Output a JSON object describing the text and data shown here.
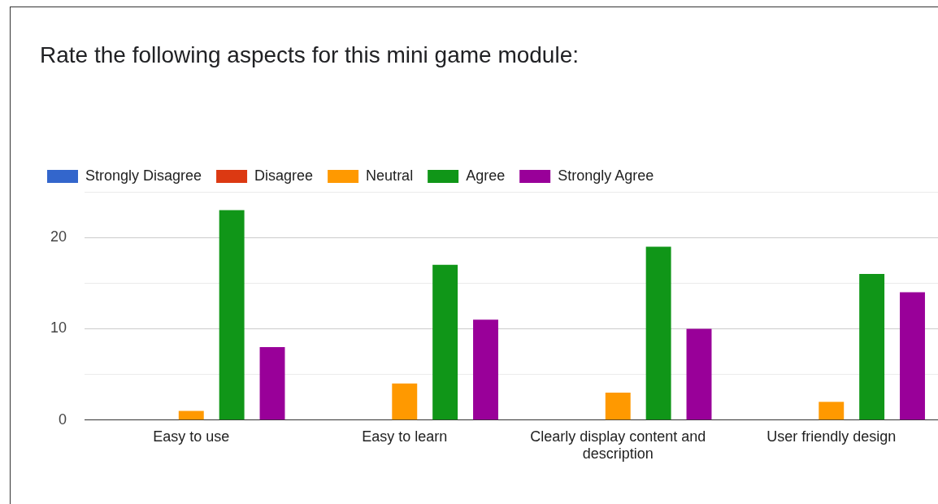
{
  "chart_data": {
    "type": "bar",
    "title": "Rate the following aspects for this mini game module:",
    "categories": [
      "Easy to use",
      "Easy to learn",
      "Clearly display content and description",
      "User friendly design"
    ],
    "series": [
      {
        "name": "Strongly Disagree",
        "color": "#3366cc",
        "values": [
          0,
          0,
          0,
          0
        ]
      },
      {
        "name": "Disagree",
        "color": "#dc3912",
        "values": [
          0,
          0,
          0,
          0
        ]
      },
      {
        "name": "Neutral",
        "color": "#ff9900",
        "values": [
          1,
          4,
          3,
          2
        ]
      },
      {
        "name": "Agree",
        "color": "#109618",
        "values": [
          23,
          17,
          19,
          16
        ]
      },
      {
        "name": "Strongly Agree",
        "color": "#990099",
        "values": [
          8,
          11,
          10,
          14
        ]
      }
    ],
    "ylim": [
      0,
      25
    ],
    "yticks": [
      0,
      {
        "value": 5,
        "label": null
      },
      10,
      {
        "value": 15,
        "label": null
      },
      20,
      {
        "value": 25,
        "label": null
      }
    ],
    "grid": "y",
    "legend": "top left"
  }
}
